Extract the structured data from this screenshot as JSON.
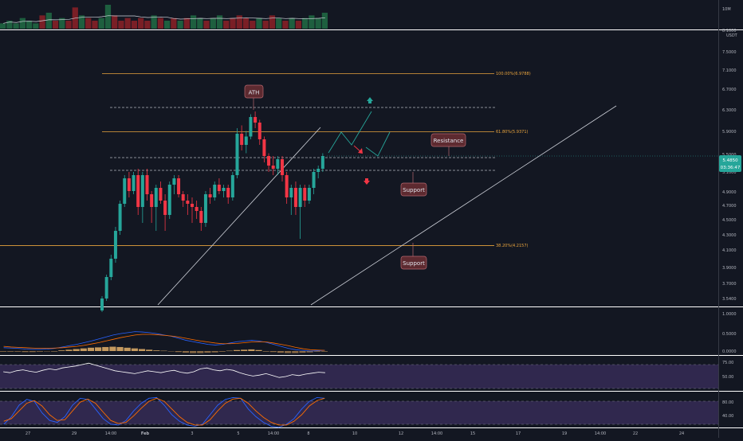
{
  "price_axis": {
    "currency": "USDT",
    "ticks": [
      "8.1000",
      "7.5000",
      "7.1000",
      "6.7000",
      "6.3000",
      "5.9000",
      "5.5000",
      "5.1000",
      "4.9000",
      "4.7000",
      "4.5000",
      "4.3000",
      "4.1000",
      "3.9000",
      "3.7000",
      "3.5400"
    ],
    "last_price": "5.4850",
    "countdown": "03:36:47",
    "last_price_color": "#26a69a"
  },
  "volume_axis": {
    "ticks": [
      "10M"
    ]
  },
  "macd_axis": {
    "ticks": [
      "1.0000",
      "0.5000",
      "0.0000"
    ]
  },
  "rsi_axis": {
    "ticks": [
      "75.00",
      "50.00"
    ]
  },
  "stoch_axis": {
    "ticks": [
      "80.00",
      "40.00"
    ]
  },
  "time_axis": {
    "labels": [
      "27",
      "29",
      "14:00",
      "Feb",
      "3",
      "5",
      "14:00",
      "8",
      "10",
      "12",
      "14:00",
      "15",
      "17",
      "19",
      "14:00",
      "22",
      "24"
    ]
  },
  "fib_levels": [
    {
      "label": "100.00%(6.9788)",
      "price": 6.9788
    },
    {
      "label": "61.80%(5.9371)",
      "price": 5.9371
    },
    {
      "label": "38.20%(4.2157)",
      "price": 4.2157
    }
  ],
  "annotations": {
    "ath": "ATH",
    "resistance": "Resistance",
    "support_upper": "Support",
    "support_lower": "Support"
  },
  "chart_data": {
    "type": "candlestick",
    "series": [
      {
        "name": "",
        "ohlc": [
          [
            3.4,
            3.58,
            3.38,
            3.55
          ],
          [
            3.55,
            3.85,
            3.52,
            3.82
          ],
          [
            3.82,
            4.1,
            3.78,
            4.05
          ],
          [
            4.05,
            4.45,
            4.0,
            4.4
          ],
          [
            4.4,
            4.8,
            4.35,
            4.75
          ],
          [
            4.75,
            5.2,
            4.7,
            5.15
          ],
          [
            5.15,
            5.25,
            4.85,
            4.95
          ],
          [
            4.95,
            5.25,
            4.9,
            5.2
          ],
          [
            5.2,
            5.3,
            4.6,
            4.7
          ],
          [
            4.7,
            5.25,
            4.5,
            5.2
          ],
          [
            5.2,
            5.3,
            4.8,
            4.9
          ],
          [
            4.9,
            4.95,
            4.5,
            4.7
          ],
          [
            4.7,
            5.05,
            4.4,
            5.0
          ],
          [
            5.0,
            5.1,
            4.75,
            4.8
          ],
          [
            4.8,
            4.9,
            4.4,
            4.6
          ],
          [
            4.6,
            5.1,
            4.55,
            5.05
          ],
          [
            5.05,
            5.2,
            4.9,
            5.15
          ],
          [
            5.15,
            5.2,
            4.85,
            4.9
          ],
          [
            4.9,
            4.95,
            4.7,
            4.8
          ],
          [
            4.8,
            4.9,
            4.6,
            4.75
          ],
          [
            4.75,
            4.85,
            4.5,
            4.7
          ],
          [
            4.7,
            4.8,
            4.55,
            4.65
          ],
          [
            4.65,
            4.7,
            4.4,
            4.5
          ],
          [
            4.5,
            4.95,
            4.45,
            4.9
          ],
          [
            4.9,
            5.0,
            4.75,
            4.85
          ],
          [
            4.85,
            5.1,
            4.8,
            5.05
          ],
          [
            5.05,
            5.15,
            4.9,
            4.95
          ],
          [
            4.95,
            5.05,
            4.85,
            5.0
          ],
          [
            5.0,
            5.05,
            4.75,
            4.85
          ],
          [
            4.85,
            5.25,
            4.8,
            5.2
          ],
          [
            5.2,
            6.0,
            5.15,
            5.9
          ],
          [
            5.9,
            6.05,
            5.6,
            5.7
          ],
          [
            5.7,
            5.95,
            5.55,
            5.85
          ],
          [
            5.85,
            6.25,
            5.8,
            6.2
          ],
          [
            6.2,
            6.3,
            6.0,
            6.1
          ],
          [
            6.1,
            6.15,
            5.7,
            5.8
          ],
          [
            5.8,
            5.85,
            5.4,
            5.5
          ],
          [
            5.5,
            5.55,
            5.25,
            5.35
          ],
          [
            5.35,
            5.5,
            5.2,
            5.3
          ],
          [
            5.3,
            5.5,
            5.2,
            5.45
          ],
          [
            5.45,
            5.5,
            5.1,
            5.2
          ],
          [
            5.2,
            5.25,
            4.75,
            4.85
          ],
          [
            4.85,
            5.05,
            4.6,
            5.0
          ],
          [
            5.0,
            5.1,
            4.6,
            4.7
          ],
          [
            4.7,
            5.05,
            4.3,
            5.0
          ],
          [
            5.0,
            5.05,
            4.7,
            4.8
          ],
          [
            4.8,
            5.05,
            4.75,
            5.0
          ],
          [
            5.0,
            5.3,
            4.9,
            5.25
          ],
          [
            5.25,
            5.35,
            5.15,
            5.3
          ],
          [
            5.3,
            5.55,
            5.25,
            5.5
          ]
        ]
      }
    ],
    "volume": [
      2,
      3,
      2,
      4,
      3,
      2,
      5,
      6,
      3,
      4,
      3,
      8,
      5,
      4,
      3,
      4,
      9,
      5,
      3,
      4,
      3,
      4,
      3,
      5,
      4,
      3,
      4,
      3,
      4,
      5,
      4,
      3,
      4,
      5,
      3,
      4,
      5,
      4,
      3,
      4,
      3,
      5,
      4,
      3,
      4,
      3,
      4,
      5,
      4,
      6
    ],
    "macd": [
      0.1,
      0.09,
      0.08,
      0.06,
      0.05,
      0.05,
      0.06,
      0.08,
      0.12,
      0.16,
      0.2,
      0.25,
      0.3,
      0.36,
      0.42,
      0.48,
      0.52,
      0.55,
      0.58,
      0.57,
      0.55,
      0.52,
      0.48,
      0.44,
      0.38,
      0.32,
      0.28,
      0.24,
      0.2,
      0.18,
      0.2,
      0.24,
      0.28,
      0.3,
      0.32,
      0.3,
      0.26,
      0.2,
      0.14,
      0.08,
      0.04,
      0.02,
      0.0,
      0.01,
      0.02
    ],
    "macd_signal": [
      0.14,
      0.12,
      0.11,
      0.1,
      0.09,
      0.08,
      0.08,
      0.09,
      0.1,
      0.12,
      0.14,
      0.17,
      0.21,
      0.25,
      0.3,
      0.35,
      0.4,
      0.44,
      0.48,
      0.5,
      0.5,
      0.49,
      0.47,
      0.45,
      0.42,
      0.38,
      0.34,
      0.3,
      0.27,
      0.24,
      0.22,
      0.22,
      0.23,
      0.25,
      0.27,
      0.28,
      0.27,
      0.24,
      0.2,
      0.16,
      0.11,
      0.07,
      0.04,
      0.03,
      0.02
    ],
    "macd_hist": [
      -0.02,
      -0.02,
      -0.02,
      -0.03,
      -0.03,
      -0.02,
      -0.01,
      0.0,
      0.02,
      0.04,
      0.06,
      0.08,
      0.1,
      0.11,
      0.12,
      0.13,
      0.12,
      0.1,
      0.08,
      0.06,
      0.04,
      0.02,
      0.01,
      -0.01,
      -0.03,
      -0.05,
      -0.06,
      -0.06,
      -0.05,
      -0.04,
      -0.02,
      0.01,
      0.03,
      0.04,
      0.05,
      0.03,
      0.0,
      -0.03,
      -0.05,
      -0.06,
      -0.06,
      -0.05,
      -0.04,
      -0.02,
      0.0
    ],
    "rsi": [
      60,
      58,
      62,
      64,
      61,
      59,
      63,
      66,
      64,
      68,
      70,
      72,
      75,
      78,
      74,
      70,
      66,
      62,
      60,
      58,
      56,
      59,
      62,
      60,
      58,
      61,
      63,
      59,
      57,
      60,
      66,
      68,
      64,
      62,
      65,
      63,
      58,
      54,
      51,
      53,
      56,
      52,
      48,
      50,
      54,
      52,
      55,
      57,
      59,
      58
    ],
    "stoch_k": [
      20,
      40,
      70,
      85,
      80,
      50,
      30,
      25,
      40,
      70,
      88,
      85,
      60,
      35,
      20,
      18,
      30,
      55,
      75,
      88,
      90,
      70,
      45,
      28,
      18,
      15,
      20,
      45,
      70,
      85,
      90,
      88,
      60,
      40,
      25,
      15,
      12,
      20,
      35,
      60,
      80,
      90,
      88
    ],
    "stoch_d": [
      28,
      35,
      55,
      75,
      82,
      68,
      45,
      30,
      32,
      55,
      78,
      86,
      75,
      52,
      30,
      22,
      25,
      42,
      62,
      80,
      88,
      80,
      60,
      40,
      25,
      18,
      18,
      32,
      55,
      75,
      86,
      88,
      75,
      55,
      38,
      25,
      18,
      18,
      28,
      45,
      68,
      82,
      88
    ]
  }
}
